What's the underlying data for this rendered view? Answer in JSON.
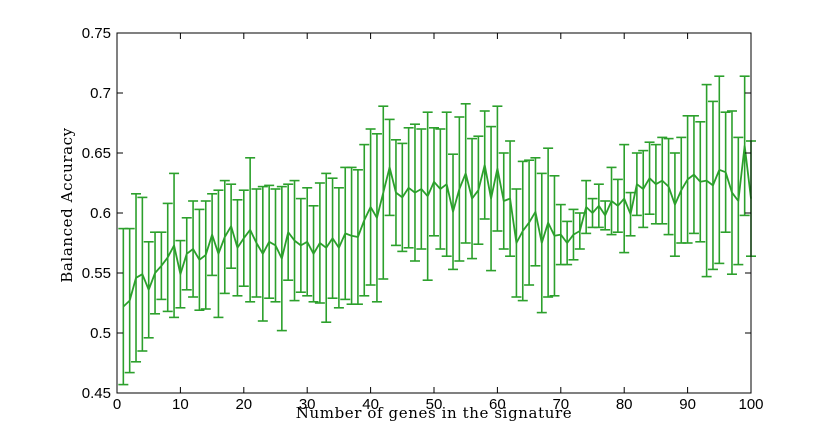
{
  "chart_data": {
    "type": "line",
    "title": "",
    "xlabel": "Number of genes in the signature",
    "ylabel": "Balanced Accuracy",
    "xlim": [
      0,
      100
    ],
    "ylim": [
      0.45,
      0.75
    ],
    "x_ticks": [
      0,
      10,
      20,
      30,
      40,
      50,
      60,
      70,
      80,
      90,
      100
    ],
    "y_ticks": [
      0.45,
      0.5,
      0.55,
      0.6,
      0.65,
      0.7,
      0.75
    ],
    "x_tick_labels": [
      "0",
      "10",
      "20",
      "30",
      "40",
      "50",
      "60",
      "70",
      "80",
      "90",
      "100"
    ],
    "y_tick_labels": [
      "0.45",
      "0.5",
      "0.55",
      "0.6",
      "0.65",
      "0.7",
      "0.75"
    ],
    "grid": false,
    "error_bars": true,
    "series": [
      {
        "color": "#2ca02c",
        "x": [
          1,
          2,
          3,
          4,
          5,
          6,
          7,
          8,
          9,
          10,
          11,
          12,
          13,
          14,
          15,
          16,
          17,
          18,
          19,
          20,
          21,
          22,
          23,
          24,
          25,
          26,
          27,
          28,
          29,
          30,
          31,
          32,
          33,
          34,
          35,
          36,
          37,
          38,
          39,
          40,
          41,
          42,
          43,
          44,
          45,
          46,
          47,
          48,
          49,
          50,
          51,
          52,
          53,
          54,
          55,
          56,
          57,
          58,
          59,
          60,
          61,
          62,
          63,
          64,
          65,
          66,
          67,
          68,
          69,
          70,
          71,
          72,
          73,
          74,
          75,
          76,
          77,
          78,
          79,
          80,
          81,
          82,
          83,
          84,
          85,
          86,
          87,
          88,
          89,
          90,
          91,
          92,
          93,
          94,
          95,
          96,
          97,
          98,
          99,
          100
        ],
        "y": [
          0.522,
          0.527,
          0.546,
          0.549,
          0.536,
          0.55,
          0.556,
          0.563,
          0.573,
          0.549,
          0.566,
          0.57,
          0.561,
          0.565,
          0.582,
          0.566,
          0.58,
          0.589,
          0.571,
          0.579,
          0.586,
          0.575,
          0.566,
          0.576,
          0.573,
          0.562,
          0.584,
          0.577,
          0.573,
          0.576,
          0.566,
          0.575,
          0.571,
          0.579,
          0.571,
          0.583,
          0.581,
          0.58,
          0.594,
          0.605,
          0.596,
          0.617,
          0.638,
          0.617,
          0.613,
          0.621,
          0.617,
          0.62,
          0.614,
          0.626,
          0.62,
          0.624,
          0.601,
          0.62,
          0.633,
          0.612,
          0.619,
          0.64,
          0.612,
          0.637,
          0.61,
          0.612,
          0.575,
          0.585,
          0.592,
          0.601,
          0.575,
          0.592,
          0.581,
          0.582,
          0.575,
          0.582,
          0.585,
          0.605,
          0.6,
          0.606,
          0.598,
          0.61,
          0.606,
          0.612,
          0.599,
          0.624,
          0.62,
          0.629,
          0.624,
          0.627,
          0.622,
          0.607,
          0.619,
          0.628,
          0.632,
          0.626,
          0.627,
          0.623,
          0.636,
          0.634,
          0.617,
          0.61,
          0.656,
          0.612
        ],
        "yerr": [
          0.065,
          0.06,
          0.07,
          0.064,
          0.04,
          0.034,
          0.028,
          0.045,
          0.06,
          0.028,
          0.03,
          0.04,
          0.042,
          0.045,
          0.034,
          0.053,
          0.047,
          0.035,
          0.04,
          0.04,
          0.06,
          0.045,
          0.056,
          0.047,
          0.047,
          0.06,
          0.04,
          0.05,
          0.039,
          0.045,
          0.04,
          0.05,
          0.062,
          0.05,
          0.05,
          0.055,
          0.057,
          0.056,
          0.063,
          0.065,
          0.07,
          0.072,
          0.04,
          0.044,
          0.045,
          0.05,
          0.057,
          0.05,
          0.07,
          0.045,
          0.05,
          0.06,
          0.048,
          0.06,
          0.058,
          0.05,
          0.045,
          0.045,
          0.06,
          0.052,
          0.04,
          0.048,
          0.045,
          0.058,
          0.052,
          0.045,
          0.058,
          0.062,
          0.05,
          0.025,
          0.018,
          0.021,
          0.015,
          0.022,
          0.012,
          0.018,
          0.012,
          0.028,
          0.022,
          0.045,
          0.018,
          0.026,
          0.032,
          0.03,
          0.033,
          0.036,
          0.04,
          0.043,
          0.044,
          0.053,
          0.049,
          0.05,
          0.08,
          0.07,
          0.078,
          0.05,
          0.068,
          0.053,
          0.058,
          0.048
        ]
      }
    ]
  }
}
